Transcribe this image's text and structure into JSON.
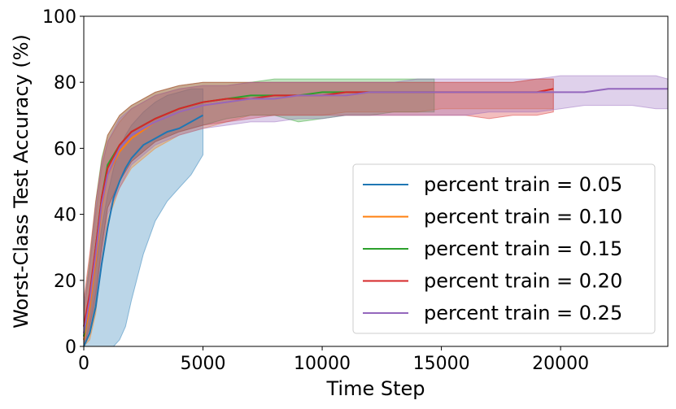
{
  "chart_data": {
    "type": "line",
    "title": "",
    "xlabel": "Time Step",
    "ylabel": "Worst-Class Test Accuracy (%)",
    "xlim": [
      0,
      24500
    ],
    "ylim": [
      0,
      100
    ],
    "x_ticks": [
      0,
      5000,
      10000,
      15000,
      20000
    ],
    "y_ticks": [
      0,
      20,
      40,
      60,
      80,
      100
    ],
    "x_tick_labels": [
      "0",
      "5000",
      "10000",
      "15000",
      "20000"
    ],
    "y_tick_labels": [
      "0",
      "20",
      "40",
      "60",
      "80",
      "100"
    ],
    "grid": false,
    "legend_position": "lower-right",
    "shaded_band": "min-max range across runs",
    "series": [
      {
        "name": "percent train = 0.05",
        "color": "#1f77b4",
        "x": [
          0,
          250,
          500,
          750,
          1000,
          1250,
          1500,
          1750,
          2000,
          2500,
          3000,
          3500,
          4000,
          4500,
          5000
        ],
        "y": [
          0,
          4,
          12,
          25,
          36,
          45,
          50,
          54,
          57,
          61,
          63,
          65,
          66,
          68,
          70
        ],
        "lower": [
          0,
          0,
          0,
          0,
          0,
          0,
          2,
          6,
          14,
          28,
          38,
          44,
          48,
          52,
          58
        ],
        "upper": [
          8,
          14,
          24,
          36,
          46,
          54,
          60,
          64,
          67,
          71,
          74,
          76,
          77,
          78,
          78
        ]
      },
      {
        "name": "percent train = 0.10",
        "color": "#ff7f0e",
        "x": [
          0,
          250,
          500,
          750,
          1000,
          1500,
          2000,
          3000,
          4000,
          5000,
          6000,
          7000,
          8000,
          9000,
          10000,
          11000,
          12000,
          13000,
          14000,
          15000,
          16000,
          17000,
          18000,
          19000,
          19700
        ],
        "y": [
          2,
          12,
          26,
          42,
          52,
          59,
          63,
          68,
          71,
          73,
          74,
          75,
          75,
          76,
          76,
          76,
          77,
          77,
          77,
          77,
          77,
          77,
          77,
          77,
          78
        ],
        "lower": [
          0,
          2,
          10,
          26,
          38,
          48,
          54,
          60,
          64,
          66,
          68,
          70,
          70,
          70,
          70,
          71,
          71,
          71,
          71,
          72,
          72,
          72,
          72,
          72,
          72
        ],
        "upper": [
          10,
          24,
          40,
          54,
          62,
          68,
          72,
          76,
          78,
          79,
          79,
          80,
          80,
          80,
          80,
          80,
          80,
          80,
          80,
          80,
          80,
          80,
          80,
          81,
          81
        ]
      },
      {
        "name": "percent train = 0.15",
        "color": "#2ca02c",
        "x": [
          0,
          250,
          500,
          750,
          1000,
          1500,
          2000,
          3000,
          4000,
          5000,
          6000,
          7000,
          8000,
          9000,
          10000,
          11000,
          12000,
          13000,
          14000,
          14700
        ],
        "y": [
          3,
          15,
          30,
          45,
          55,
          61,
          65,
          69,
          72,
          74,
          75,
          76,
          76,
          76,
          77,
          77,
          77,
          77,
          77,
          77
        ],
        "lower": [
          0,
          4,
          14,
          30,
          42,
          50,
          56,
          62,
          65,
          67,
          69,
          70,
          70,
          68,
          69,
          70,
          70,
          71,
          71,
          71
        ],
        "upper": [
          12,
          26,
          44,
          57,
          64,
          70,
          73,
          77,
          79,
          80,
          80,
          80,
          81,
          81,
          81,
          81,
          81,
          81,
          81,
          81
        ]
      },
      {
        "name": "percent train = 0.20",
        "color": "#d62728",
        "x": [
          0,
          250,
          500,
          750,
          1000,
          1500,
          2000,
          3000,
          4000,
          5000,
          6000,
          7000,
          8000,
          9000,
          10000,
          11000,
          12000,
          13000,
          14000,
          15000,
          16000,
          17000,
          18000,
          19000,
          19700
        ],
        "y": [
          6,
          16,
          30,
          45,
          54,
          61,
          65,
          69,
          72,
          74,
          75,
          75,
          76,
          76,
          76,
          77,
          77,
          77,
          77,
          77,
          77,
          77,
          77,
          77,
          78
        ],
        "lower": [
          0,
          6,
          16,
          30,
          42,
          50,
          56,
          62,
          65,
          67,
          68,
          69,
          70,
          70,
          70,
          70,
          70,
          70,
          70,
          70,
          70,
          69,
          70,
          70,
          71
        ],
        "upper": [
          14,
          28,
          44,
          56,
          64,
          70,
          73,
          77,
          79,
          80,
          80,
          80,
          80,
          80,
          80,
          80,
          80,
          80,
          80,
          80,
          80,
          80,
          80,
          81,
          81
        ]
      },
      {
        "name": "percent train = 0.25",
        "color": "#9467bd",
        "x": [
          0,
          250,
          500,
          750,
          1000,
          1500,
          2000,
          3000,
          4000,
          5000,
          6000,
          7000,
          8000,
          9000,
          10000,
          11000,
          12000,
          13000,
          14000,
          15000,
          16000,
          17000,
          18000,
          19000,
          20000,
          21000,
          22000,
          23000,
          24000,
          24500
        ],
        "y": [
          4,
          14,
          28,
          43,
          52,
          60,
          64,
          68,
          71,
          73,
          74,
          75,
          75,
          76,
          76,
          76,
          77,
          77,
          77,
          77,
          77,
          77,
          77,
          77,
          77,
          77,
          78,
          78,
          78,
          78
        ],
        "lower": [
          0,
          4,
          14,
          28,
          40,
          48,
          55,
          61,
          64,
          66,
          67,
          68,
          68,
          69,
          69,
          70,
          70,
          70,
          70,
          70,
          70,
          71,
          71,
          71,
          72,
          73,
          73,
          73,
          72,
          72
        ],
        "upper": [
          12,
          24,
          42,
          55,
          62,
          69,
          72,
          76,
          78,
          79,
          79,
          80,
          80,
          80,
          80,
          80,
          80,
          80,
          81,
          81,
          81,
          81,
          81,
          81,
          82,
          82,
          82,
          82,
          82,
          81
        ]
      }
    ]
  }
}
